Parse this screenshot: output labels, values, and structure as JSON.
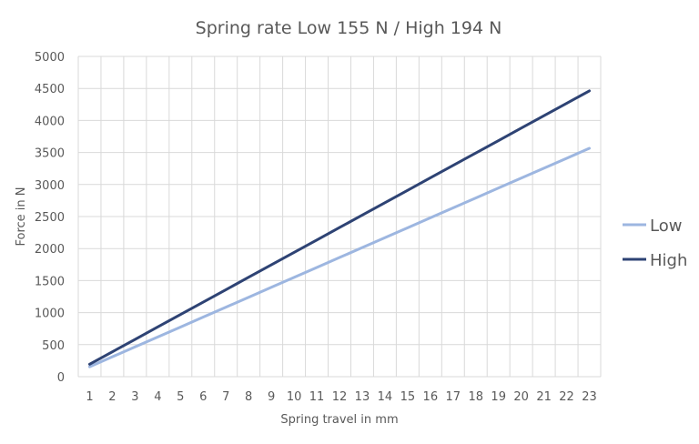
{
  "chart_data": {
    "type": "line",
    "title": "Spring rate Low 155 N / High 194 N",
    "xlabel": "Spring travel in mm",
    "ylabel": "Force in N",
    "x": [
      1,
      2,
      3,
      4,
      5,
      6,
      7,
      8,
      9,
      10,
      11,
      12,
      13,
      14,
      15,
      16,
      17,
      18,
      19,
      20,
      21,
      22,
      23
    ],
    "ylim": [
      0,
      5000
    ],
    "yticks": [
      0,
      500,
      1000,
      1500,
      2000,
      2500,
      3000,
      3500,
      4000,
      4500,
      5000
    ],
    "grid": true,
    "legend_position": "right",
    "series": [
      {
        "name": "Low",
        "color": "#9db6e0",
        "values": [
          155,
          310,
          465,
          620,
          775,
          930,
          1085,
          1240,
          1395,
          1550,
          1705,
          1860,
          2015,
          2170,
          2325,
          2480,
          2635,
          2790,
          2945,
          3100,
          3255,
          3410,
          3565
        ]
      },
      {
        "name": "High",
        "color": "#2e4374",
        "values": [
          194,
          388,
          582,
          776,
          970,
          1164,
          1358,
          1552,
          1746,
          1940,
          2134,
          2328,
          2522,
          2716,
          2910,
          3104,
          3298,
          3492,
          3686,
          3880,
          4074,
          4268,
          4462
        ]
      }
    ]
  }
}
